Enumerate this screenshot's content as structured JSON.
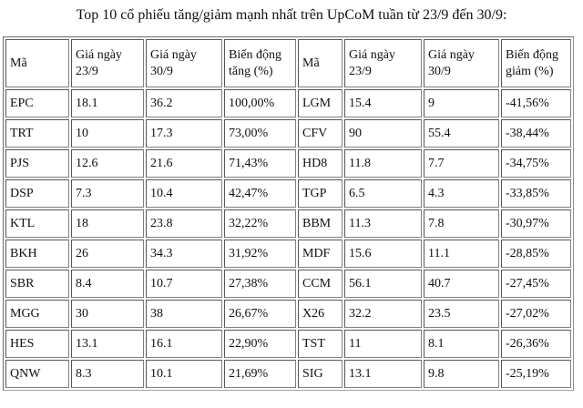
{
  "title": "Top 10 cổ phiếu tăng/giảm mạnh nhất trên UpCoM tuần từ 23/9 đến 30/9:",
  "table": {
    "headers": [
      "Mã",
      "Giá ngày 23/9",
      "Giá ngày 30/9",
      "Biến động tăng (%)",
      "Mã",
      "Giá ngày 23/9",
      "Giá ngày 30/9",
      "Biến động giảm (%)"
    ],
    "rows": [
      [
        "EPC",
        "18.1",
        "36.2",
        "100,00%",
        "LGM",
        "15.4",
        "9",
        "-41,56%"
      ],
      [
        "TRT",
        "10",
        "17.3",
        "73,00%",
        "CFV",
        "90",
        "55.4",
        "-38,44%"
      ],
      [
        "PJS",
        "12.6",
        "21.6",
        "71,43%",
        "HD8",
        "11.8",
        "7.7",
        "-34,75%"
      ],
      [
        "DSP",
        "7.3",
        "10.4",
        "42,47%",
        "TGP",
        "6.5",
        "4.3",
        "-33,85%"
      ],
      [
        "KTL",
        "18",
        "23.8",
        "32,22%",
        "BBM",
        "11.3",
        "7.8",
        "-30,97%"
      ],
      [
        "BKH",
        "26",
        "34.3",
        "31,92%",
        "MDF",
        "15.6",
        "11.1",
        "-28,85%"
      ],
      [
        "SBR",
        "8.4",
        "10.7",
        "27,38%",
        "CCM",
        "56.1",
        "40.7",
        "-27,45%"
      ],
      [
        "MGG",
        "30",
        "38",
        "26,67%",
        "X26",
        "32.2",
        "23.5",
        "-27,02%"
      ],
      [
        "HES",
        "13.1",
        "16.1",
        "22,90%",
        "TST",
        "11",
        "8.1",
        "-26,36%"
      ],
      [
        "QNW",
        "8.3",
        "10.1",
        "21,69%",
        "SIG",
        "13.1",
        "9.8",
        "-25,19%"
      ]
    ]
  }
}
